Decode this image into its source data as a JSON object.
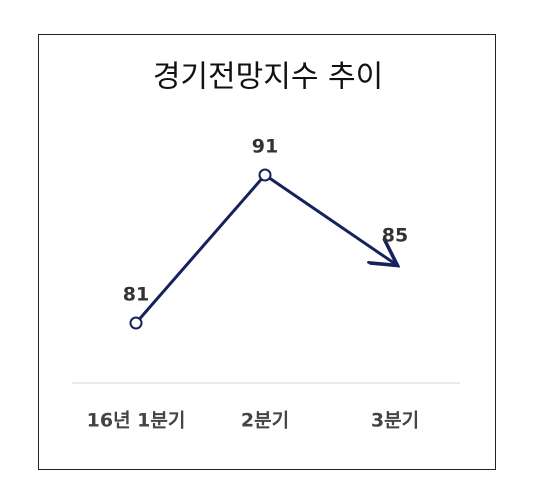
{
  "chart_data": {
    "type": "line",
    "title": "경기전망지수 추이",
    "categories": [
      "16년 1분기",
      "2분기",
      "3분기"
    ],
    "values": [
      81,
      91,
      85
    ],
    "color": "#16215e"
  }
}
